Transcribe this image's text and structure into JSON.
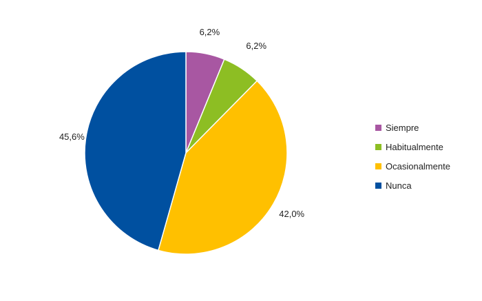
{
  "chart_data": {
    "type": "pie",
    "categories": [
      "Siempre",
      "Habitualmente",
      "Ocasionalmente",
      "Nunca"
    ],
    "values": [
      6.2,
      6.2,
      42.0,
      45.6
    ],
    "data_labels": [
      "6,2%",
      "6,2%",
      "42,0%",
      "45,6%"
    ],
    "colors": [
      "#A857A2",
      "#8DBE23",
      "#FFC000",
      "#0050A0"
    ],
    "start_angle_deg": 0,
    "direction": "clockwise",
    "legend_placement": "right"
  }
}
